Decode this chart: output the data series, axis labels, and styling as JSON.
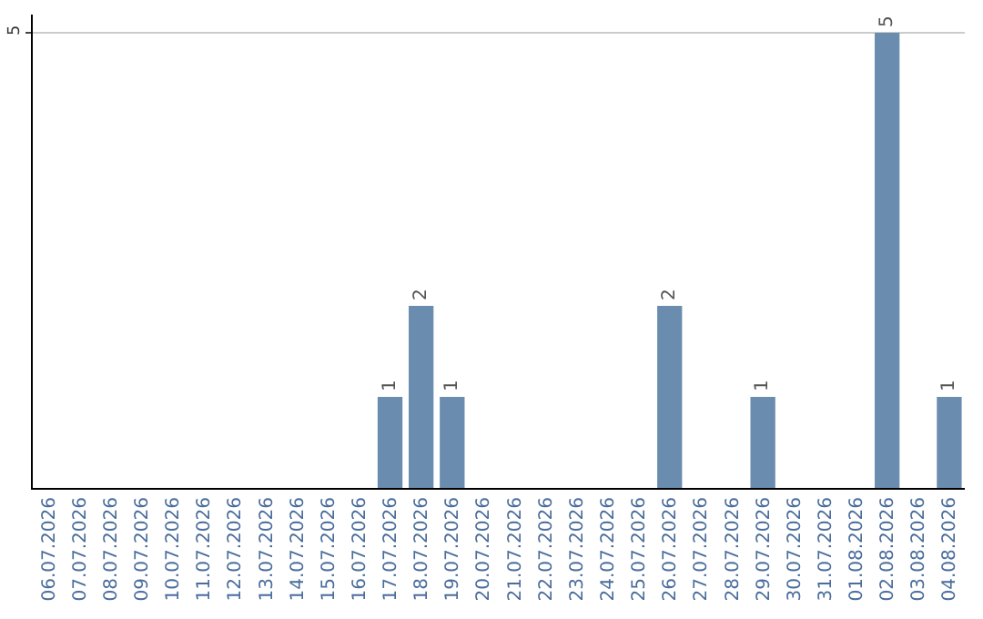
{
  "chart_data": {
    "type": "bar",
    "categories": [
      "06.07.2026",
      "07.07.2026",
      "08.07.2026",
      "09.07.2026",
      "10.07.2026",
      "11.07.2026",
      "12.07.2026",
      "13.07.2026",
      "14.07.2026",
      "15.07.2026",
      "16.07.2026",
      "17.07.2026",
      "18.07.2026",
      "19.07.2026",
      "20.07.2026",
      "21.07.2026",
      "22.07.2026",
      "23.07.2026",
      "24.07.2026",
      "25.07.2026",
      "26.07.2026",
      "27.07.2026",
      "28.07.2026",
      "29.07.2026",
      "30.07.2026",
      "31.07.2026",
      "01.08.2026",
      "02.08.2026",
      "03.08.2026",
      "04.08.2026"
    ],
    "values": [
      null,
      null,
      null,
      null,
      null,
      null,
      null,
      null,
      null,
      null,
      null,
      1,
      2,
      1,
      null,
      null,
      null,
      null,
      null,
      null,
      2,
      null,
      null,
      1,
      null,
      null,
      null,
      5,
      null,
      1
    ],
    "color": "#6a8caf",
    "ylim": [
      0,
      5.2
    ],
    "yticks": [
      5
    ],
    "grid": "y",
    "data_labels": true
  }
}
